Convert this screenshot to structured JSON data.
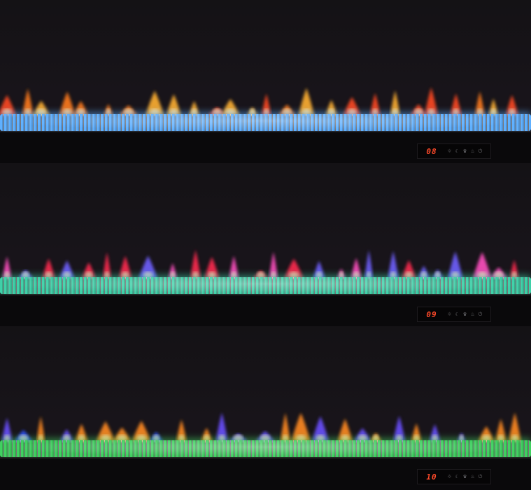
{
  "panels": [
    {
      "display": "08",
      "flame_colors": [
        "#ff7a1a",
        "#ffb030",
        "#ff4a20"
      ],
      "bed_color": "#5fb0ff",
      "icons": [
        "brightness-icon",
        "moon-icon",
        "crown-icon",
        "flame-icon",
        "power-icon"
      ]
    },
    {
      "display": "09",
      "flame_colors": [
        "#ff2a50",
        "#ff50c0",
        "#7060ff"
      ],
      "bed_color": "#3fd0a8",
      "icons": [
        "brightness-icon",
        "moon-icon",
        "crown-icon",
        "flame-icon",
        "power-icon"
      ]
    },
    {
      "display": "10",
      "flame_colors": [
        "#ff8a20",
        "#6a50ff",
        "#3050ff"
      ],
      "bed_color": "#40d060",
      "icons": [
        "brightness-icon",
        "moon-icon",
        "crown-icon",
        "flame-icon",
        "power-icon"
      ]
    }
  ]
}
